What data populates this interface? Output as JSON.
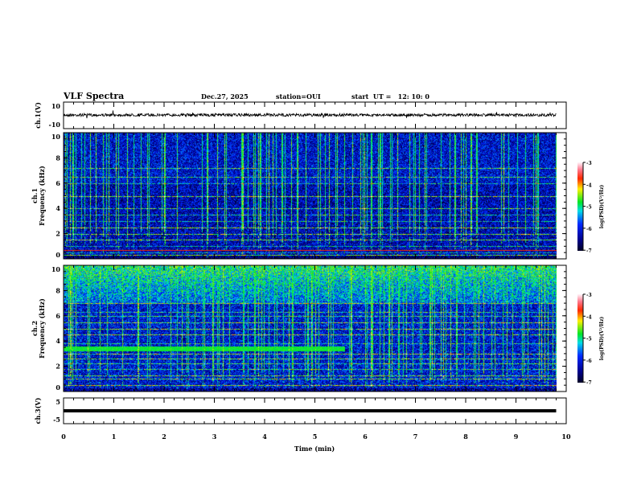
{
  "header": {
    "title": "VLF Spectra",
    "date": "Dec.27, 2025",
    "station": "station=OUI",
    "start": "start  UT =   12: 10: 0"
  },
  "chart_data": [
    {
      "type": "line",
      "name": "ch1-waveform",
      "ylabel": "ch.1(V)",
      "ylim": [
        -10,
        10
      ],
      "ytick_labels": [
        "10",
        "-10"
      ],
      "xlim": [
        0,
        10
      ],
      "description_values": {
        "mean": 0,
        "amplitude": 1
      }
    },
    {
      "type": "heatmap",
      "name": "ch1-spectrogram",
      "ylabel": "ch.1\nFrequency (kHz)",
      "ylim": [
        0,
        10
      ],
      "ytick_labels": [
        "0",
        "2",
        "4",
        "6",
        "8",
        "10"
      ],
      "xlim": [
        0,
        10
      ],
      "data_end_min": 9.8,
      "colorbar": {
        "label": "log(PSD)(V²/Hz)",
        "range": [
          -7,
          -3
        ],
        "tick_labels": [
          "-3",
          "-4",
          "-5",
          "-6",
          "-7"
        ]
      },
      "horizontal_lines_khz": [
        0.3,
        0.5,
        1.0,
        1.5,
        2.0,
        2.5,
        3.0,
        3.5,
        4.0,
        5.0,
        6.0,
        6.5,
        7.2
      ],
      "background_level": -6.3
    },
    {
      "type": "heatmap",
      "name": "ch2-spectrogram",
      "ylabel": "ch.2\nFrequency (kHz)",
      "ylim": [
        0,
        10
      ],
      "ytick_labels": [
        "0",
        "2",
        "4",
        "6",
        "8",
        "10"
      ],
      "xlim": [
        0,
        10
      ],
      "data_end_min": 9.8,
      "colorbar": {
        "label": "log(PSD)(V²/Hz)",
        "range": [
          -7,
          -3
        ],
        "tick_labels": [
          "-3",
          "-4",
          "-5",
          "-6",
          "-7"
        ]
      },
      "band_khz": [
        3.2,
        3.6
      ],
      "band_end_min": 5.7,
      "upper_band_khz": [
        7,
        10
      ],
      "background_level": -6.1
    },
    {
      "type": "line",
      "name": "ch3-waveform",
      "ylabel": "ch.3(V)",
      "ylim": [
        -5,
        5
      ],
      "ytick_labels": [
        "5",
        "-5"
      ],
      "xlim": [
        0,
        10
      ],
      "constant_value": 0
    }
  ],
  "xaxis": {
    "label": "Time  (min)",
    "tick_labels": [
      "0",
      "1",
      "2",
      "3",
      "4",
      "5",
      "6",
      "7",
      "8",
      "9",
      "10"
    ]
  },
  "colors": {
    "trace": "#000000",
    "axes": "#000000"
  }
}
